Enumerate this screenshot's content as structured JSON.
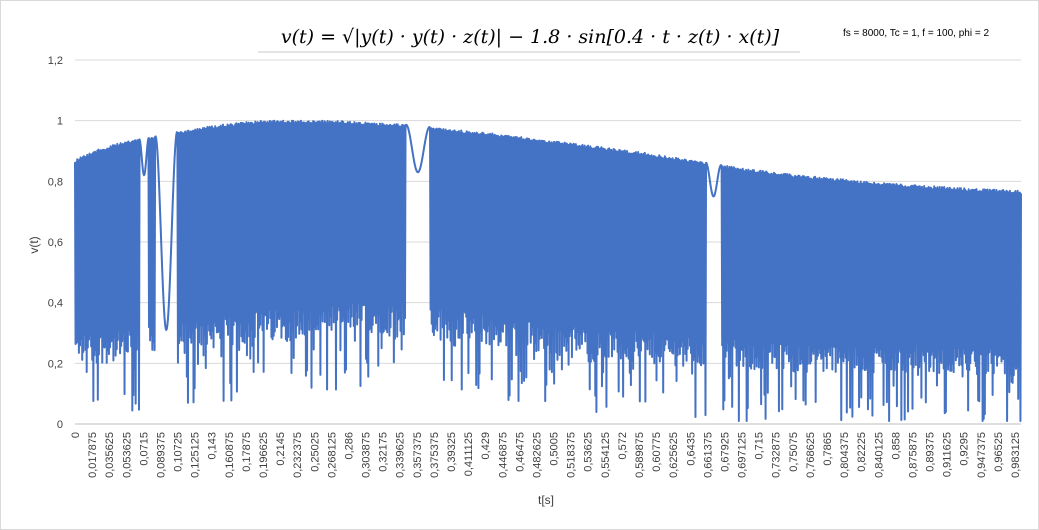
{
  "chart_data": {
    "type": "line",
    "title": "v(t) = √|y(t) · y(t) · z(t)| − 1.8 · sin[0.4 · t · z(t) · x(t)]",
    "annotation": "fs = 8000, Tc = 1, f = 100, phi = 2",
    "xlabel": "t[s]",
    "ylabel": "v(t)",
    "ylim": [
      0,
      1.2
    ],
    "yticks": [
      "0",
      "0,2",
      "0,4",
      "0,6",
      "0,8",
      "1",
      "1,2"
    ],
    "xticks": [
      "0",
      "0,017875",
      "0,035625",
      "0,053625",
      "0,0715",
      "0,089375",
      "0,10725",
      "0,125125",
      "0,143",
      "0,160875",
      "0,17875",
      "0,196625",
      "0,2145",
      "0,232375",
      "0,25025",
      "0,268125",
      "0,286",
      "0,303875",
      "0,32175",
      "0,339625",
      "0,357375",
      "0,375375",
      "0,39325",
      "0,411125",
      "0,429",
      "0,446875",
      "0,46475",
      "0,482625",
      "0,5005",
      "0,518375",
      "0,53625",
      "0,554125",
      "0,572",
      "0,589875",
      "0,60775",
      "0,625625",
      "0,6435",
      "0,661375",
      "0,67925",
      "0,697125",
      "0,715",
      "0,732875",
      "0,75075",
      "0,768625",
      "0,7865",
      "0,804375",
      "0,82225",
      "0,840125",
      "0,858",
      "0,875875",
      "0,89375",
      "0,911625",
      "0,9295",
      "0,947375",
      "0,96525",
      "0,983125"
    ],
    "xlim": [
      0,
      1
    ],
    "grid": true,
    "series_color": "#4472C4",
    "envelope_upper": {
      "x": [
        0,
        0.005,
        0.02,
        0.04,
        0.06,
        0.08,
        0.1,
        0.12,
        0.15,
        0.18,
        0.2,
        0.22,
        0.25,
        0.28,
        0.3,
        0.33,
        0.36,
        0.4,
        0.45,
        0.5,
        0.55,
        0.6,
        0.65,
        0.7,
        0.75,
        0.8,
        0.85,
        0.9,
        0.95,
        1.0
      ],
      "y": [
        0.87,
        0.88,
        0.9,
        0.92,
        0.935,
        0.945,
        0.96,
        0.97,
        0.985,
        0.995,
        1.0,
        1.0,
        1.0,
        1.0,
        0.995,
        0.99,
        0.985,
        0.97,
        0.955,
        0.935,
        0.915,
        0.895,
        0.87,
        0.845,
        0.825,
        0.81,
        0.795,
        0.785,
        0.775,
        0.77
      ]
    },
    "envelope_lower": {
      "x": [
        0,
        0.02,
        0.05,
        0.1,
        0.15,
        0.2,
        0.25,
        0.3,
        0.35,
        0.4,
        0.45,
        0.5,
        0.55,
        0.6,
        0.65,
        0.7,
        0.75,
        0.8,
        0.85,
        0.9,
        0.95,
        1.0
      ],
      "y": [
        0.2,
        0.2,
        0.2,
        0.22,
        0.25,
        0.27,
        0.28,
        0.3,
        0.3,
        0.28,
        0.25,
        0.23,
        0.21,
        0.2,
        0.19,
        0.18,
        0.17,
        0.17,
        0.17,
        0.17,
        0.16,
        0.16
      ]
    },
    "slow_oscillation_regions": [
      {
        "t_start": 0.068,
        "t_end": 0.078,
        "min": 0.82
      },
      {
        "t_start": 0.085,
        "t_end": 0.108,
        "min": 0.31
      },
      {
        "t_start": 0.35,
        "t_end": 0.375,
        "min": 0.83
      },
      {
        "t_start": 0.667,
        "t_end": 0.683,
        "min": 0.75
      }
    ]
  }
}
